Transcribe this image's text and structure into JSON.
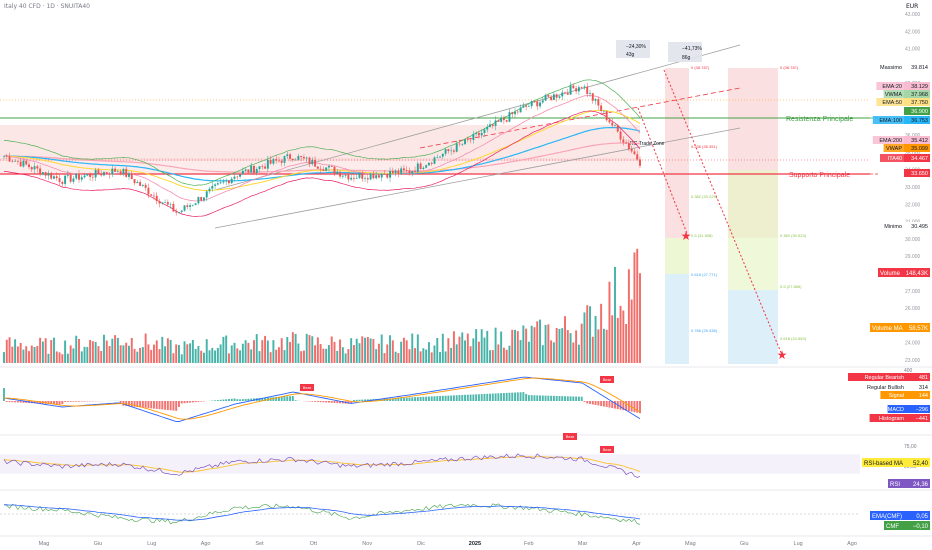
{
  "header": {
    "title": "Italy 40 CFD · 1D · SNUITA40",
    "currency": "EUR"
  },
  "price_axis": [
    "43.000",
    "42.000",
    "41.000",
    "40.000",
    "39.000",
    "38.000",
    "37.000",
    "36.000",
    "35.000",
    "34.000",
    "33.000",
    "32.000",
    "31.000",
    "30.000",
    "29.000",
    "28.000",
    "27.000",
    "26.000",
    "25.000",
    "24.000",
    "23.000"
  ],
  "price_badges": [
    {
      "label": "Massimo",
      "value": "39.814",
      "color": "#ffffff",
      "text": "#131722"
    },
    {
      "label": "EMA:20",
      "value": "38.129",
      "color": "#f8bbd0",
      "text": "#131722"
    },
    {
      "label": "VWMA",
      "value": "37.968",
      "color": "#a5d6a7",
      "text": "#131722"
    },
    {
      "label": "EMA:50",
      "value": "37.750",
      "color": "#ffe082",
      "text": "#131722"
    },
    {
      "label": "",
      "value": "36.900",
      "color": "#43a047",
      "text": "#ffffff"
    },
    {
      "label": "EMA:100",
      "value": "36.753",
      "color": "#29b6f6",
      "text": "#131722"
    },
    {
      "label": "EMA:200",
      "value": "35.412",
      "color": "#f8bbd0",
      "text": "#131722"
    },
    {
      "label": "VWAP",
      "value": "35.099",
      "color": "#ff9800",
      "text": "#131722"
    },
    {
      "label": "ITA40",
      "value": "34.467",
      "color": "#f23645",
      "text": "#ffffff"
    },
    {
      "label": "",
      "value": "33.650",
      "color": "#f23645",
      "text": "#ffffff"
    },
    {
      "label": "Minimo",
      "value": "30.495",
      "color": "#ffffff",
      "text": "#131722"
    }
  ],
  "annotations": {
    "resistance": "Resistenza Principale",
    "support": "Supporto Principale",
    "trade_zone": "RG Trade Zone",
    "measure1_pct": "−24,30%",
    "measure1_bars": "43g",
    "measure2_pct": "−41,73%",
    "measure2_bars": "86g"
  },
  "fib_left": [
    "0 (38.787)",
    "0.236 (35.351)",
    "0.382 (33.225)",
    "0.5 (31.508)",
    "0.618 (27.771)",
    "0.786 (25.438)"
  ],
  "fib_right": [
    "0 (38.787)",
    "0.382 (30.523)",
    "0.5 (27.856)",
    "0.618 (24.553)"
  ],
  "volume_panel": {
    "volume_label": "Volume",
    "volume_value": "148,43K",
    "ma_label": "Volume MA",
    "ma_value": "58,57K"
  },
  "macd_panel": {
    "axis": [
      "400"
    ],
    "legend": [
      {
        "label": "Regular Bearish",
        "value": "481",
        "color": "#f23645",
        "text": "#ffffff"
      },
      {
        "label": "Regular Bullish",
        "value": "314",
        "color": "#ffffff",
        "text": "#131722"
      },
      {
        "label": "Signal",
        "value": "144",
        "color": "#ff9800",
        "text": "#ffffff"
      },
      {
        "label": "MACD",
        "value": "−296",
        "color": "#2962ff",
        "text": "#ffffff"
      },
      {
        "label": "Histogram",
        "value": "−441",
        "color": "#f23645",
        "text": "#ffffff"
      }
    ],
    "bear_tag": "Bear"
  },
  "rsi_panel": {
    "axis": [
      "75,00",
      "50,00"
    ],
    "ma_label": "RSI-based MA",
    "ma_value": "52,40",
    "rsi_label": "RSI",
    "rsi_value": "24,36",
    "bear_tag": "Bear"
  },
  "cmf_panel": {
    "ema_label": "EMA(CMF)",
    "ema_value": "0,05",
    "cmf_label": "CMF",
    "cmf_value": "−0,10"
  },
  "time_axis": [
    "Mag",
    "Giu",
    "Lug",
    "Ago",
    "Set",
    "Ott",
    "Nov",
    "Dic",
    "2025",
    "Feb",
    "Mar",
    "Apr",
    "Mag",
    "Giu",
    "Lug",
    "Ago"
  ],
  "chart_data": {
    "type": "candlestick",
    "title": "",
    "price_range": [
      23000,
      43000
    ],
    "series": [
      {
        "name": "Italy 40 close",
        "points": [
          [
            "Mag",
            34800
          ],
          [
            "Giu",
            33400
          ],
          [
            "Lug",
            34000
          ],
          [
            "Ago",
            31500
          ],
          [
            "Set",
            33700
          ],
          [
            "Ott",
            34800
          ],
          [
            "Nov",
            33600
          ],
          [
            "Dic",
            33900
          ],
          [
            "2025",
            35600
          ],
          [
            "Feb",
            37600
          ],
          [
            "Mar",
            38900
          ],
          [
            "Apr",
            34467
          ]
        ]
      }
    ],
    "volume": [
      30,
      28,
      40,
      25,
      32,
      35,
      30,
      33,
      36,
      45,
      60,
      148
    ],
    "macd": [
      50,
      -100,
      -30,
      -350,
      -50,
      150,
      -40,
      100,
      250,
      400,
      300,
      -296
    ],
    "rsi": [
      55,
      45,
      50,
      30,
      55,
      60,
      45,
      52,
      62,
      68,
      60,
      24.36
    ],
    "cmf": [
      0.1,
      0.05,
      -0.05,
      -0.1,
      0.08,
      0.1,
      -0.05,
      0.05,
      0.12,
      0.08,
      0.0,
      -0.1
    ]
  },
  "colors": {
    "bull": "#26a69a",
    "bear": "#ef5350",
    "resistance": "#43a047",
    "support": "#f23645"
  }
}
